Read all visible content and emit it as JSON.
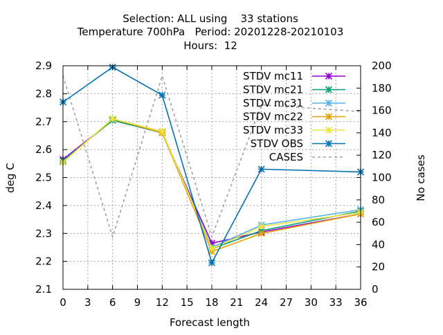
{
  "chart_data": {
    "type": "line",
    "title_lines": [
      "Selection: ALL using    33 stations",
      "Temperature 700hPa   Period: 20201228-20210103",
      "Hours:  12"
    ],
    "xlabel": "Forecast length",
    "ylabel": "deg C",
    "y2label": "No cases",
    "xlim": [
      0,
      36
    ],
    "ylim": [
      2.1,
      2.9
    ],
    "y2lim": [
      0,
      200
    ],
    "xticks": [
      "0",
      "3",
      "6",
      "9",
      "12",
      "15",
      "18",
      "21",
      "24",
      "27",
      "30",
      "33",
      "36"
    ],
    "yticks": [
      "2.1",
      "2.2",
      "2.3",
      "2.4",
      "2.5",
      "2.6",
      "2.7",
      "2.8",
      "2.9"
    ],
    "y2ticks": [
      "0",
      "20",
      "40",
      "60",
      "80",
      "100",
      "120",
      "140",
      "160",
      "180",
      "200"
    ],
    "grid": true,
    "legend_position": "top-right",
    "series": [
      {
        "name": "STDV mc11",
        "color": "#9400d3",
        "marker": "x-star",
        "axis": "y",
        "x": [
          0,
          6,
          12,
          18,
          24,
          36
        ],
        "values": [
          2.565,
          2.705,
          2.66,
          2.265,
          2.305,
          2.37
        ]
      },
      {
        "name": "STDV mc21",
        "color": "#009e73",
        "marker": "x-star",
        "axis": "y",
        "x": [
          0,
          6,
          12,
          18,
          24,
          36
        ],
        "values": [
          2.56,
          2.705,
          2.66,
          2.245,
          2.31,
          2.38
        ]
      },
      {
        "name": "STDV mc31",
        "color": "#56b4e9",
        "marker": "x-star",
        "axis": "y",
        "x": [
          0,
          6,
          12,
          18,
          24,
          36
        ],
        "values": [
          2.555,
          2.71,
          2.665,
          2.25,
          2.33,
          2.385
        ]
      },
      {
        "name": "STDV mc22",
        "color": "#e69f00",
        "marker": "x-star",
        "axis": "y",
        "x": [
          0,
          6,
          12,
          18,
          24,
          36
        ],
        "values": [
          2.555,
          2.71,
          2.66,
          2.235,
          2.3,
          2.37
        ]
      },
      {
        "name": "STDV mc33",
        "color": "#f0e442",
        "marker": "x-star",
        "axis": "y",
        "x": [
          0,
          6,
          12,
          18,
          24,
          36
        ],
        "values": [
          2.555,
          2.71,
          2.665,
          2.245,
          2.325,
          2.375
        ]
      },
      {
        "name": "STDV OBS",
        "color": "#0072b2",
        "marker": "x-star",
        "axis": "y",
        "x": [
          0,
          6,
          12,
          18,
          24,
          36
        ],
        "values": [
          2.77,
          2.895,
          2.795,
          2.195,
          2.53,
          2.52
        ]
      },
      {
        "name": "CASES",
        "color": "#a0a0a0",
        "marker": "none",
        "dashed": true,
        "axis": "y2",
        "x": [
          0,
          6,
          12,
          18,
          24,
          36
        ],
        "values": [
          191,
          47,
          191,
          47,
          165,
          159
        ]
      }
    ]
  }
}
